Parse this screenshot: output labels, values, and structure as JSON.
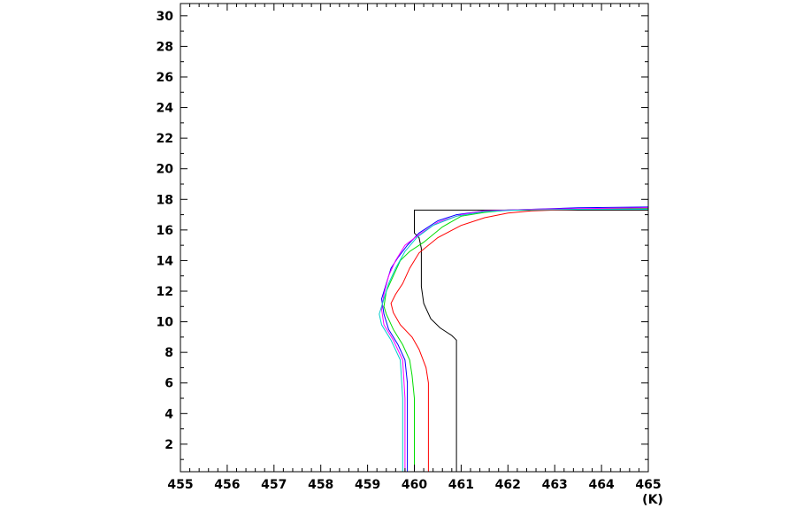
{
  "chart_data": {
    "type": "line",
    "x_unit_label": "(K)",
    "xlim": [
      455,
      465
    ],
    "ylim": [
      0.2,
      30.8
    ],
    "x_ticks": [
      455,
      456,
      457,
      458,
      459,
      460,
      461,
      462,
      463,
      464,
      465
    ],
    "x_tick_labels": [
      "455",
      "456",
      "457",
      "458",
      "459",
      "460",
      "461",
      "462",
      "463",
      "464",
      "465"
    ],
    "y_ticks": [
      2,
      4,
      6,
      8,
      10,
      12,
      14,
      16,
      18,
      20,
      22,
      24,
      26,
      28,
      30
    ],
    "y_tick_labels": [
      "2",
      "4",
      "6",
      "8",
      "10",
      "12",
      "14",
      "16",
      "18",
      "20",
      "22",
      "24",
      "26",
      "28",
      "30"
    ],
    "grid": false,
    "legend": "none",
    "series": [
      {
        "color": "#000000",
        "points": [
          [
            460.9,
            0.2
          ],
          [
            460.9,
            8.8
          ],
          [
            460.8,
            9.1
          ],
          [
            460.55,
            9.6
          ],
          [
            460.35,
            10.2
          ],
          [
            460.2,
            11.2
          ],
          [
            460.15,
            12.3
          ],
          [
            460.15,
            13.5
          ],
          [
            460.15,
            14.8
          ],
          [
            460.1,
            15.5
          ],
          [
            460.0,
            15.8
          ],
          [
            460.0,
            17.3
          ],
          [
            465,
            17.3
          ]
        ]
      },
      {
        "color": "#ff0000",
        "points": [
          [
            460.3,
            0.2
          ],
          [
            460.3,
            4.0
          ],
          [
            460.3,
            6.0
          ],
          [
            460.25,
            7.0
          ],
          [
            460.1,
            8.2
          ],
          [
            459.95,
            9.0
          ],
          [
            459.7,
            9.8
          ],
          [
            459.55,
            10.6
          ],
          [
            459.5,
            11.2
          ],
          [
            459.6,
            11.8
          ],
          [
            459.75,
            12.5
          ],
          [
            459.9,
            13.5
          ],
          [
            460.1,
            14.5
          ],
          [
            460.5,
            15.5
          ],
          [
            461.0,
            16.3
          ],
          [
            461.5,
            16.8
          ],
          [
            462.0,
            17.1
          ],
          [
            462.5,
            17.25
          ],
          [
            463.5,
            17.35
          ],
          [
            465,
            17.4
          ]
        ]
      },
      {
        "color": "#00dd00",
        "points": [
          [
            460.0,
            0.2
          ],
          [
            460.0,
            5.0
          ],
          [
            459.95,
            6.5
          ],
          [
            459.9,
            7.5
          ],
          [
            459.75,
            8.5
          ],
          [
            459.55,
            9.5
          ],
          [
            459.4,
            10.5
          ],
          [
            459.35,
            11.0
          ],
          [
            459.4,
            12.0
          ],
          [
            459.55,
            13.0
          ],
          [
            459.7,
            14.0
          ],
          [
            459.9,
            14.6
          ],
          [
            460.2,
            15.2
          ],
          [
            460.6,
            16.2
          ],
          [
            461.0,
            16.9
          ],
          [
            461.5,
            17.15
          ],
          [
            462.0,
            17.3
          ],
          [
            463.0,
            17.35
          ],
          [
            465,
            17.4
          ]
        ]
      },
      {
        "color": "#0000ff",
        "points": [
          [
            459.85,
            0.2
          ],
          [
            459.85,
            4.0
          ],
          [
            459.85,
            6.0
          ],
          [
            459.8,
            7.5
          ],
          [
            459.65,
            8.5
          ],
          [
            459.45,
            9.5
          ],
          [
            459.35,
            10.5
          ],
          [
            459.3,
            11.5
          ],
          [
            459.4,
            12.5
          ],
          [
            459.5,
            13.5
          ],
          [
            459.65,
            14.2
          ],
          [
            459.85,
            15.0
          ],
          [
            460.1,
            15.8
          ],
          [
            460.5,
            16.6
          ],
          [
            460.9,
            17.0
          ],
          [
            461.5,
            17.25
          ],
          [
            462.5,
            17.35
          ],
          [
            463.5,
            17.45
          ],
          [
            465,
            17.5
          ]
        ]
      },
      {
        "color": "#ff00ff",
        "points": [
          [
            459.8,
            0.2
          ],
          [
            459.8,
            5.0
          ],
          [
            459.75,
            7.5
          ],
          [
            459.55,
            8.8
          ],
          [
            459.35,
            9.8
          ],
          [
            459.3,
            10.8
          ],
          [
            459.35,
            11.8
          ],
          [
            459.45,
            13.0
          ],
          [
            459.6,
            14.0
          ],
          [
            459.8,
            15.0
          ],
          [
            460.1,
            15.7
          ],
          [
            460.5,
            16.5
          ],
          [
            461.0,
            17.0
          ],
          [
            461.5,
            17.25
          ],
          [
            462.5,
            17.35
          ],
          [
            465,
            17.45
          ]
        ]
      },
      {
        "color": "#00cccc",
        "points": [
          [
            459.75,
            0.2
          ],
          [
            459.75,
            5.0
          ],
          [
            459.7,
            7.5
          ],
          [
            459.5,
            8.8
          ],
          [
            459.3,
            9.8
          ],
          [
            459.25,
            10.5
          ],
          [
            459.35,
            11.5
          ],
          [
            459.45,
            12.5
          ],
          [
            459.6,
            13.5
          ],
          [
            459.8,
            14.6
          ],
          [
            460.05,
            15.5
          ],
          [
            460.4,
            16.3
          ],
          [
            460.9,
            16.9
          ],
          [
            461.5,
            17.2
          ],
          [
            462.2,
            17.3
          ],
          [
            463.5,
            17.35
          ],
          [
            465,
            17.35
          ]
        ]
      }
    ]
  }
}
